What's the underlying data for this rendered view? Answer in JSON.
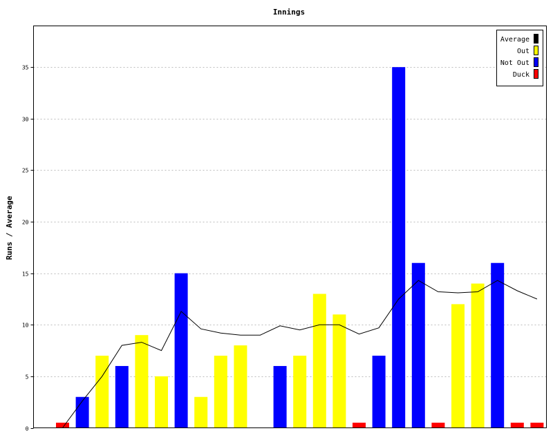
{
  "chart_data": {
    "type": "bar",
    "title": "Innings",
    "xlabel": "",
    "ylabel": "Runs / Average",
    "ylim": [
      0,
      39
    ],
    "yticks": [
      0,
      5,
      10,
      15,
      20,
      25,
      30,
      35
    ],
    "grid": true,
    "legend_position": "top-right",
    "colors": {
      "Average": "#000000",
      "Out": "#ffff00",
      "Not Out": "#0000ff",
      "Duck": "#ff0000"
    },
    "legend": [
      "Average",
      "Out",
      "Not Out",
      "Duck"
    ],
    "innings": [
      {
        "runs": 0.5,
        "type": "Duck"
      },
      {
        "runs": 3,
        "type": "Not Out"
      },
      {
        "runs": 7,
        "type": "Out"
      },
      {
        "runs": 6,
        "type": "Not Out"
      },
      {
        "runs": 9,
        "type": "Out"
      },
      {
        "runs": 5,
        "type": "Out"
      },
      {
        "runs": 15,
        "type": "Not Out"
      },
      {
        "runs": 3,
        "type": "Out"
      },
      {
        "runs": 7,
        "type": "Out"
      },
      {
        "runs": 8,
        "type": "Out"
      },
      {
        "runs": 0,
        "type": "None"
      },
      {
        "runs": 6,
        "type": "Not Out"
      },
      {
        "runs": 7,
        "type": "Out"
      },
      {
        "runs": 13,
        "type": "Out"
      },
      {
        "runs": 11,
        "type": "Out"
      },
      {
        "runs": 0.5,
        "type": "Duck"
      },
      {
        "runs": 7,
        "type": "Not Out"
      },
      {
        "runs": 35,
        "type": "Not Out"
      },
      {
        "runs": 16,
        "type": "Not Out"
      },
      {
        "runs": 0.5,
        "type": "Duck"
      },
      {
        "runs": 12,
        "type": "Out"
      },
      {
        "runs": 14,
        "type": "Out"
      },
      {
        "runs": 16,
        "type": "Not Out"
      },
      {
        "runs": 0.5,
        "type": "Duck"
      },
      {
        "runs": 0.5,
        "type": "Duck"
      }
    ],
    "average": [
      0,
      2.6,
      5,
      8,
      8.3,
      7.5,
      11.3,
      9.6,
      9.2,
      9,
      9,
      9.9,
      9.5,
      10,
      10,
      9.1,
      9.7,
      12.5,
      14.3,
      13.2,
      13.1,
      13.2,
      14.3,
      13.3,
      12.5
    ]
  }
}
